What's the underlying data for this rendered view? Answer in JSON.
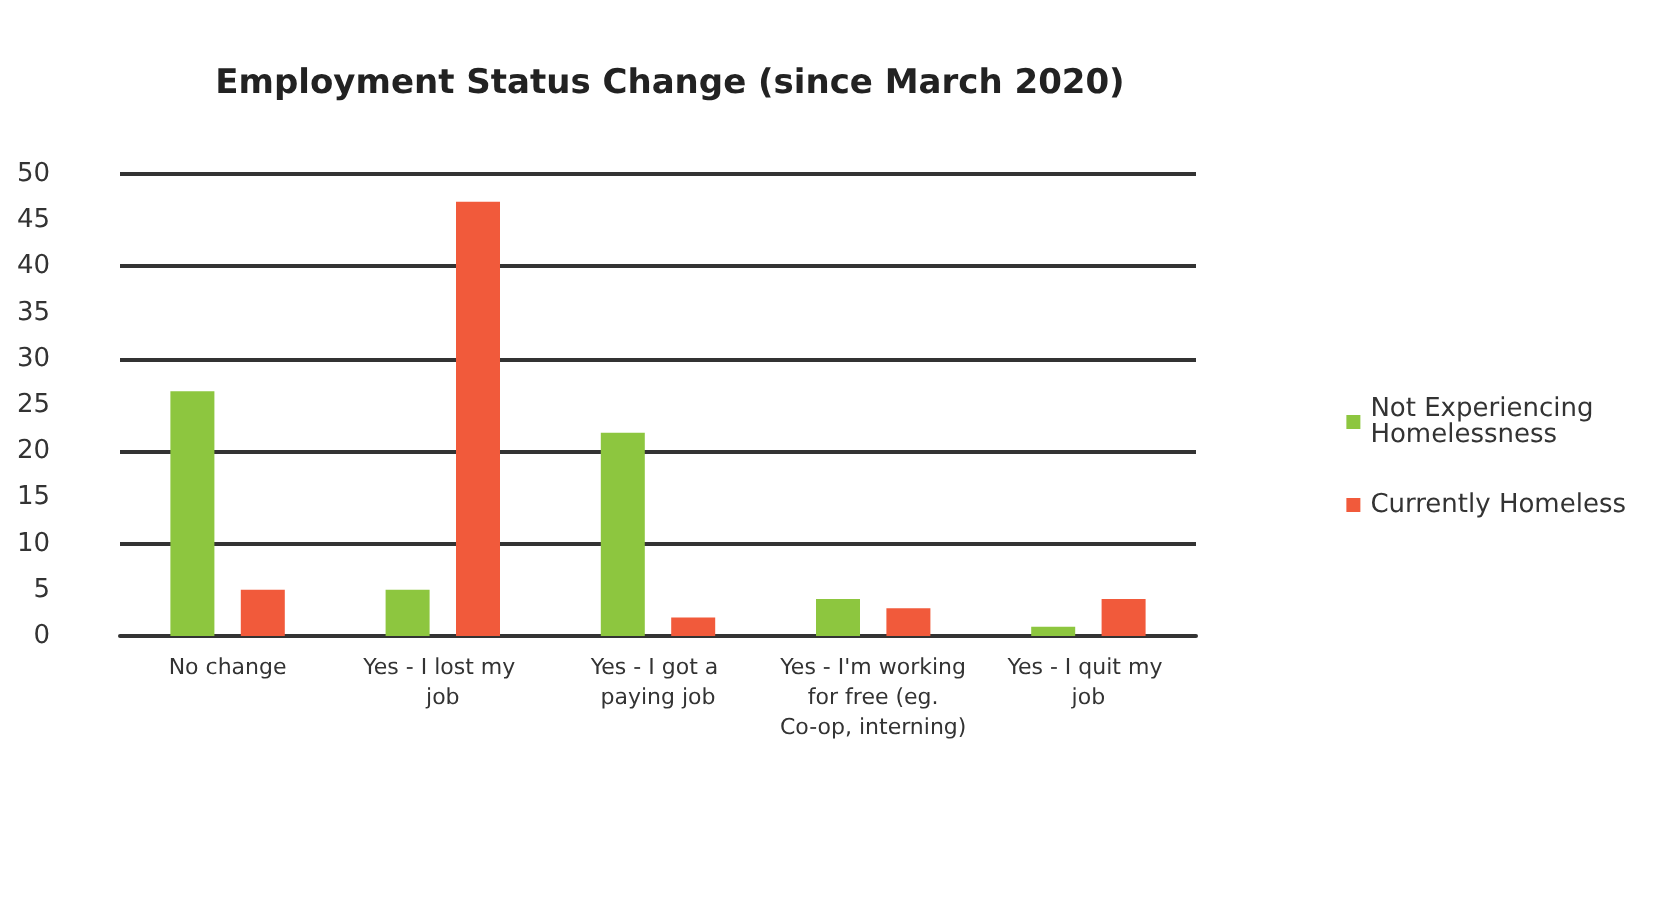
{
  "chart_data": {
    "type": "bar",
    "title": "Employment Status Change (since March 2020)",
    "categories": [
      "No change",
      "Yes - I lost my job",
      "Yes - I got a paying job",
      "Yes - I'm working for free (eg. Co-op, interning)",
      "Yes - I quit my job"
    ],
    "series": [
      {
        "name": "Not Experiencing Homelessness",
        "color": "#8dc63f",
        "values": [
          26.5,
          5,
          22,
          4,
          1
        ]
      },
      {
        "name": "Currently Homeless",
        "color": "#f15a3b",
        "values": [
          5,
          47,
          2,
          3,
          4
        ]
      }
    ],
    "ylim": [
      0,
      50
    ],
    "yticks": [
      0,
      5,
      10,
      15,
      20,
      25,
      30,
      35,
      40,
      45,
      50
    ],
    "grid": "y",
    "legend": "right"
  }
}
